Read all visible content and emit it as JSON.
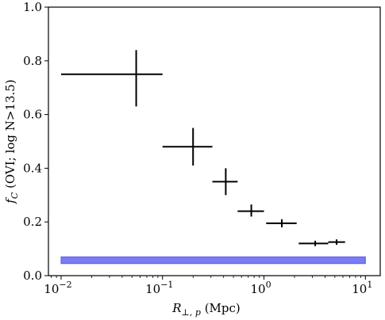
{
  "chart_data": {
    "type": "scatter",
    "title": "",
    "xlabel_main": "R",
    "xlabel_sub": "⊥, p",
    "xlabel_units": "(Mpc)",
    "ylabel_main": "f",
    "ylabel_sub": "C",
    "ylabel_rest": "(OVI; log N>13.5)",
    "xscale": "log",
    "xlim": [
      0.0075,
      14
    ],
    "ylim": [
      0.0,
      1.0
    ],
    "x_ticks": [
      {
        "value": 0.01,
        "base": "10",
        "exp": "−2"
      },
      {
        "value": 0.1,
        "base": "10",
        "exp": "−1"
      },
      {
        "value": 1,
        "base": "10",
        "exp": "0"
      },
      {
        "value": 10,
        "base": "10",
        "exp": "1"
      }
    ],
    "y_ticks": [
      {
        "value": 0.0,
        "label": "0.0"
      },
      {
        "value": 0.2,
        "label": "0.2"
      },
      {
        "value": 0.4,
        "label": "0.4"
      },
      {
        "value": 0.6,
        "label": "0.6"
      },
      {
        "value": 0.8,
        "label": "0.8"
      },
      {
        "value": 1.0,
        "label": "1.0"
      }
    ],
    "points": [
      {
        "x": 0.055,
        "y": 0.75,
        "x_lo": 0.01,
        "x_hi": 0.1,
        "y_lo": 0.63,
        "y_hi": 0.84
      },
      {
        "x": 0.2,
        "y": 0.48,
        "x_lo": 0.1,
        "x_hi": 0.31,
        "y_lo": 0.41,
        "y_hi": 0.55
      },
      {
        "x": 0.42,
        "y": 0.35,
        "x_lo": 0.31,
        "x_hi": 0.55,
        "y_lo": 0.3,
        "y_hi": 0.4
      },
      {
        "x": 0.75,
        "y": 0.24,
        "x_lo": 0.55,
        "x_hi": 1.0,
        "y_lo": 0.22,
        "y_hi": 0.265
      },
      {
        "x": 1.5,
        "y": 0.195,
        "x_lo": 1.05,
        "x_hi": 2.1,
        "y_lo": 0.18,
        "y_hi": 0.21
      },
      {
        "x": 3.2,
        "y": 0.12,
        "x_lo": 2.2,
        "x_hi": 4.3,
        "y_lo": 0.11,
        "y_hi": 0.13
      },
      {
        "x": 5.2,
        "y": 0.125,
        "x_lo": 4.3,
        "x_hi": 6.3,
        "y_lo": 0.115,
        "y_hi": 0.135
      }
    ],
    "band": {
      "x_start": 0.01,
      "x_end": 10,
      "y_lo": 0.045,
      "y_hi": 0.07,
      "color": "#7b7bf5"
    },
    "colors": {
      "errorbar": "#000000",
      "band_fill": "#7b7bf5",
      "band_edge": "#5b5be0"
    },
    "grid": false,
    "legend": "none"
  }
}
